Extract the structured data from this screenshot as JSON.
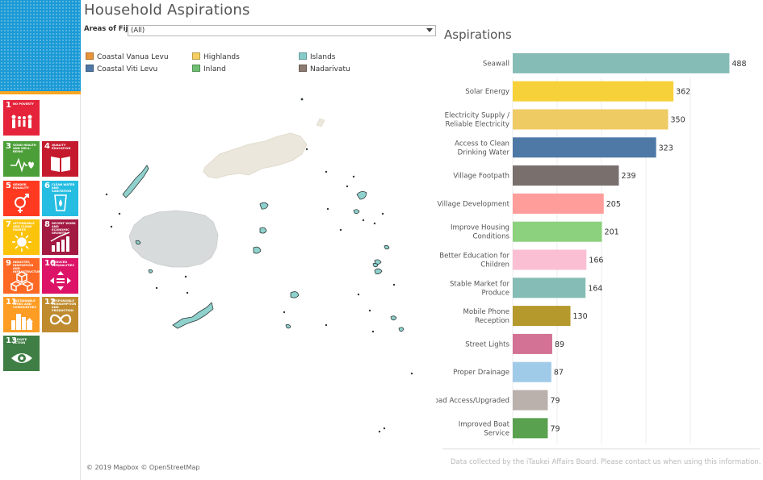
{
  "title": "Household Aspirations",
  "filter": {
    "label": "Areas of Fiji",
    "value": "(All)"
  },
  "legend": [
    {
      "label": "Coastal Vanua Levu",
      "color": "#e8943a"
    },
    {
      "label": "Highlands",
      "color": "#f6cf62"
    },
    {
      "label": "Islands",
      "color": "#86cbc8"
    },
    {
      "label": "Coastal Viti Levu",
      "color": "#4e79a7"
    },
    {
      "label": "Inland",
      "color": "#6fbf73"
    },
    {
      "label": "Nadarivatu",
      "color": "#8c7b70"
    }
  ],
  "sdg_tiles": [
    {
      "number": "1",
      "text": "NO POVERTY",
      "color": "#e5243b",
      "icon": "people-icon"
    },
    {
      "number": "3",
      "text": "GOOD HEALTH AND WELL-BEING",
      "color": "#4c9f38",
      "icon": "heartbeat-icon"
    },
    {
      "number": "4",
      "text": "QUALITY EDUCATION",
      "color": "#c5192d",
      "icon": "book-icon"
    },
    {
      "number": "5",
      "text": "GENDER EQUALITY",
      "color": "#ff3a21",
      "icon": "gender-icon"
    },
    {
      "number": "6",
      "text": "CLEAN WATER AND SANITATION",
      "color": "#26bde2",
      "icon": "water-drop-icon"
    },
    {
      "number": "7",
      "text": "AFFORDABLE AND CLEAN ENERGY",
      "color": "#fcc30b",
      "icon": "sun-icon"
    },
    {
      "number": "8",
      "text": "DECENT WORK AND ECONOMIC GROWTH",
      "color": "#a21942",
      "icon": "growth-chart-icon"
    },
    {
      "number": "9",
      "text": "INDUSTRY, INNOVATION AND INFRASTRUCTURE",
      "color": "#fd6925",
      "icon": "cubes-icon"
    },
    {
      "number": "10",
      "text": "REDUCED INEQUALITIES",
      "color": "#dd1367",
      "icon": "equality-icon"
    },
    {
      "number": "11",
      "text": "SUSTAINABLE CITIES AND COMMUNITIES",
      "color": "#fd9d24",
      "icon": "city-icon"
    },
    {
      "number": "12",
      "text": "RESPONSIBLE CONSUMPTION AND PRODUCTION",
      "color": "#bf8b2e",
      "icon": "infinity-icon"
    },
    {
      "number": "13",
      "text": "CLIMATE ACTION",
      "color": "#3f7e44",
      "icon": "eye-globe-icon"
    }
  ],
  "map": {
    "attribution": "© 2019 Mapbox © OpenStreetMap"
  },
  "chart_data": {
    "type": "bar",
    "title": "Aspirations",
    "orientation": "horizontal",
    "xlim": [
      0,
      500
    ],
    "categories": [
      "Seawall",
      "Solar Energy",
      "Electricity Supply / Reliable Electricity",
      "Access to Clean Drinking Water",
      "Village Footpath",
      "Village Development",
      "Improve Housing Conditions",
      "Better Education for Children",
      "Stable Market for Produce",
      "Mobile Phone Reception",
      "Street Lights",
      "Proper Drainage",
      "Road Access/Upgraded",
      "Improved Boat Service"
    ],
    "values": [
      488,
      362,
      350,
      323,
      239,
      205,
      201,
      166,
      164,
      130,
      89,
      87,
      79,
      79
    ],
    "colors": [
      "#86bcb6",
      "#f7d139",
      "#efcb63",
      "#4e79a7",
      "#79706e",
      "#ff9d9a",
      "#8cd17d",
      "#fabfd2",
      "#86bcb6",
      "#b6992d",
      "#d37295",
      "#a0cbe8",
      "#bab0ac",
      "#59a14f"
    ]
  },
  "footer_note": "Data collected by the iTaukei Affairs Board. Please contact us when using this information."
}
